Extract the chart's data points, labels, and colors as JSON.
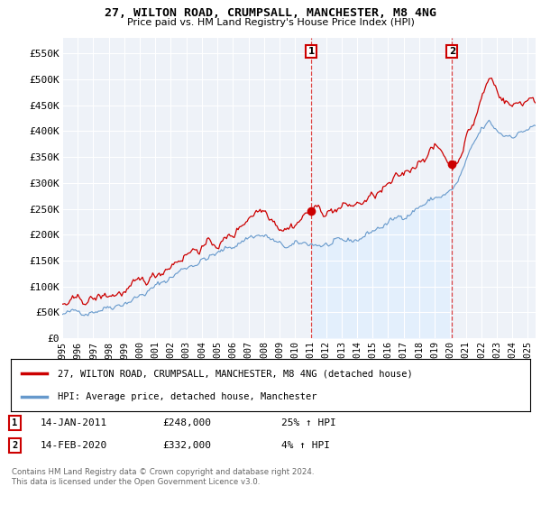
{
  "title": "27, WILTON ROAD, CRUMPSALL, MANCHESTER, M8 4NG",
  "subtitle": "Price paid vs. HM Land Registry's House Price Index (HPI)",
  "ylabel_ticks": [
    "£0",
    "£50K",
    "£100K",
    "£150K",
    "£200K",
    "£250K",
    "£300K",
    "£350K",
    "£400K",
    "£450K",
    "£500K",
    "£550K"
  ],
  "ytick_values": [
    0,
    50000,
    100000,
    150000,
    200000,
    250000,
    300000,
    350000,
    400000,
    450000,
    500000,
    550000
  ],
  "ylim": [
    0,
    580000
  ],
  "xlim_start": 1995.3,
  "xlim_end": 2025.5,
  "legend_line1": "27, WILTON ROAD, CRUMPSALL, MANCHESTER, M8 4NG (detached house)",
  "legend_line2": "HPI: Average price, detached house, Manchester",
  "sale1_label": "1",
  "sale1_date": "14-JAN-2011",
  "sale1_price": "£248,000",
  "sale1_hpi": "25% ↑ HPI",
  "sale1_x": 2011.04,
  "sale2_label": "2",
  "sale2_date": "14-FEB-2020",
  "sale2_price": "£332,000",
  "sale2_hpi": "4% ↑ HPI",
  "sale2_x": 2020.12,
  "footnote": "Contains HM Land Registry data © Crown copyright and database right 2024.\nThis data is licensed under the Open Government Licence v3.0.",
  "line_color_red": "#cc0000",
  "line_color_blue": "#6699cc",
  "fill_color_blue": "#ddeeff",
  "vline_color": "#dd4444",
  "background_color": "#ffffff",
  "plot_bg_color": "#eef2f8"
}
